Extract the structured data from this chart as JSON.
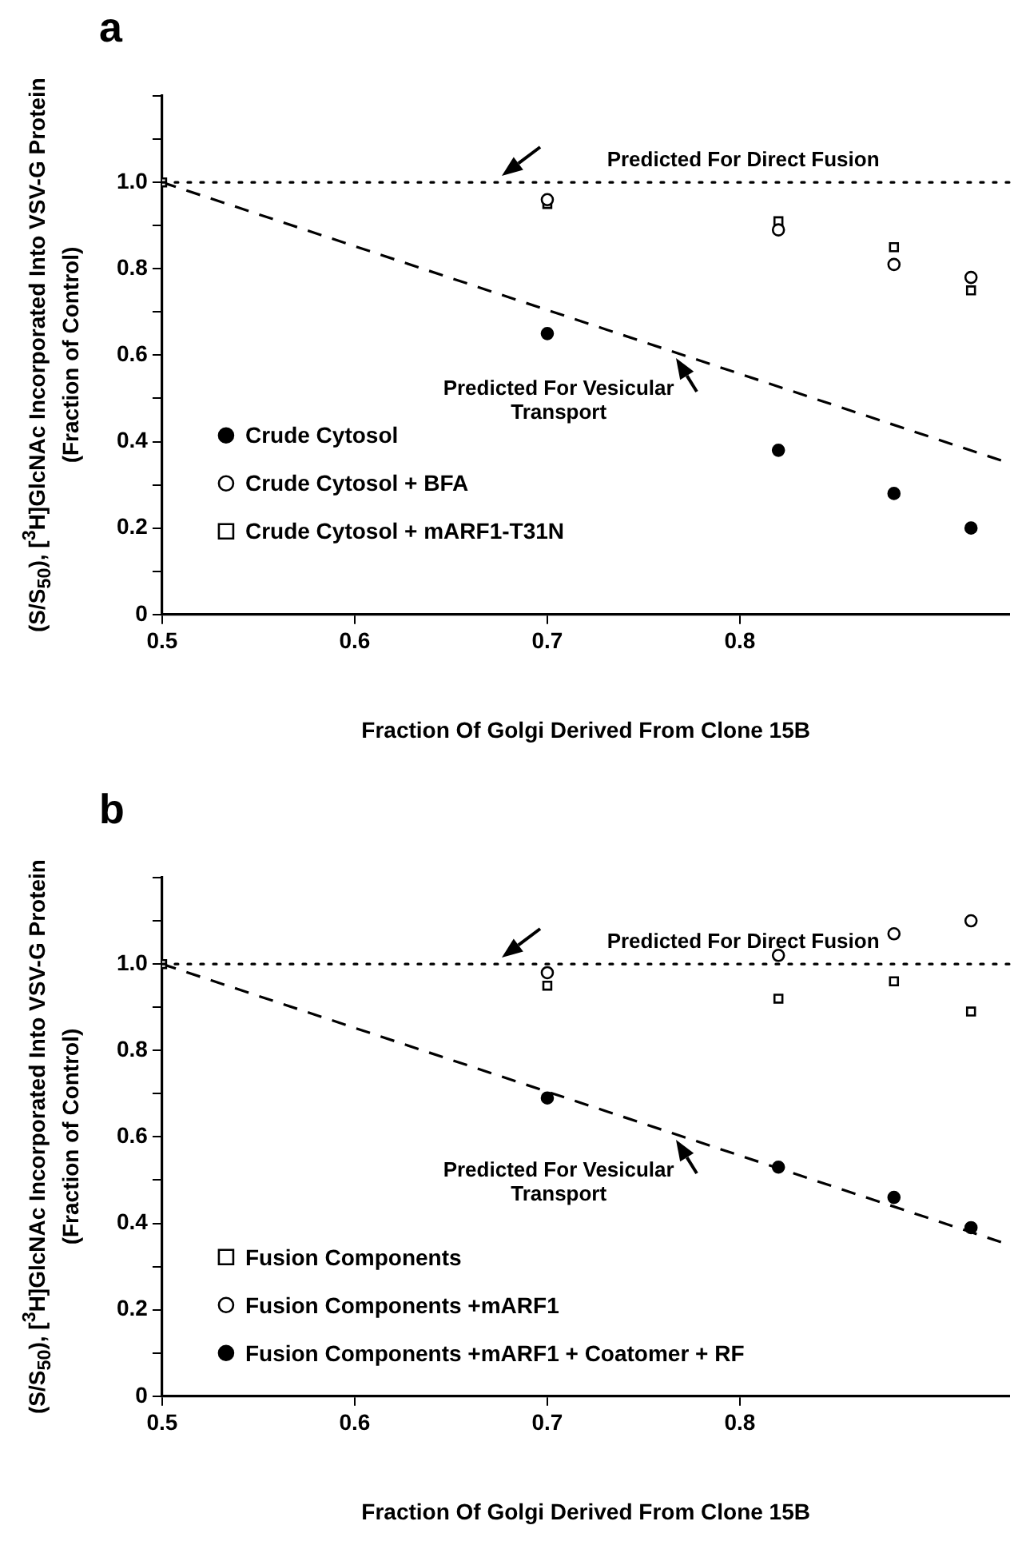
{
  "chart_data": [
    {
      "type": "scatter",
      "title": "a",
      "xlabel": "Fraction Of Golgi Derived From Clone 15B",
      "ylabel": "(S/S$_{50}$), [$^{3}$H]GlcNAc Incorporated Into VSV-G Protein (Fraction of Control)",
      "xlim": [
        0.5,
        0.94
      ],
      "xticks": [
        0.5,
        0.6,
        0.7,
        0.8
      ],
      "ylim": [
        0,
        1.2
      ],
      "yticks": [
        0,
        {
          "value": 0.1,
          "label": null
        },
        0.2,
        {
          "value": 0.3,
          "label": null
        },
        0.4,
        {
          "value": 0.5,
          "label": null
        },
        0.6,
        {
          "value": 0.7,
          "label": null
        },
        0.8,
        {
          "value": 0.9,
          "label": null
        },
        {
          "value": 1,
          "label": "1.0"
        },
        {
          "value": 1.1,
          "label": null
        },
        {
          "value": 1.2,
          "label": null
        }
      ],
      "grid": false,
      "legend": "left",
      "ref_lines": [
        {
          "axis": "y",
          "value": 1,
          "label": "Predicted For Direct Fusion",
          "line_style": "dotted",
          "color": "#000000"
        }
      ],
      "series": [
        {
          "name": "Crude Cytosol",
          "type": "scatter",
          "marker": "circle",
          "color": "#000000",
          "x": [
            0.7,
            0.82,
            0.88,
            0.92
          ],
          "values": [
            0.65,
            0.38,
            0.28,
            0.2
          ]
        },
        {
          "name": "Crude Cytosol + BFA",
          "type": "scatter",
          "marker": "circle",
          "color": "#ffffff",
          "x": [
            0.7,
            0.82,
            0.88,
            0.92
          ],
          "values": [
            0.96,
            0.89,
            0.81,
            0.78
          ]
        },
        {
          "name": "Crude Cytosol + mARF1-T31N",
          "type": "scatter",
          "marker": "square",
          "color": "#ffffff",
          "x": [
            0.5,
            0.7,
            0.82,
            0.88,
            0.92
          ],
          "values": [
            1,
            0.95,
            0.91,
            0.85,
            0.75
          ]
        },
        {
          "name": "Predicted For Vesicular Transport",
          "type": "line",
          "marker": "none",
          "line_style": "dashed",
          "color": "#000000",
          "x": [
            0.5,
            0.94
          ],
          "values": [
            1,
            0.35
          ]
        }
      ]
    },
    {
      "type": "scatter",
      "title": "b",
      "xlabel": "Fraction Of Golgi Derived From Clone 15B",
      "ylabel": "(S/S$_{50}$), [$^{3}$H]GlcNAc Incorporated Into VSV-G Protein (Fraction of Control)",
      "xlim": [
        0.5,
        0.94
      ],
      "xticks": [
        0.5,
        0.6,
        0.7,
        0.8
      ],
      "ylim": [
        0,
        1.2
      ],
      "yticks": [
        0,
        {
          "value": 0.1,
          "label": null
        },
        0.2,
        {
          "value": 0.3,
          "label": null
        },
        0.4,
        {
          "value": 0.5,
          "label": null
        },
        0.6,
        {
          "value": 0.7,
          "label": null
        },
        0.8,
        {
          "value": 0.9,
          "label": null
        },
        {
          "value": 1,
          "label": "1.0"
        },
        {
          "value": 1.1,
          "label": null
        },
        {
          "value": 1.2,
          "label": null
        }
      ],
      "grid": false,
      "legend": "bottom left",
      "ref_lines": [
        {
          "axis": "y",
          "value": 1,
          "label": "Predicted For Direct Fusion",
          "line_style": "dotted",
          "color": "#000000"
        }
      ],
      "series": [
        {
          "name": "Fusion Components",
          "type": "scatter",
          "marker": "square",
          "color": "#ffffff",
          "x": [
            0.5,
            0.7,
            0.82,
            0.88,
            0.92
          ],
          "values": [
            1,
            0.95,
            0.92,
            0.96,
            0.89
          ]
        },
        {
          "name": "Fusion Components +mARF1",
          "type": "scatter",
          "marker": "circle",
          "color": "#ffffff",
          "x": [
            0.7,
            0.82,
            0.88,
            0.92
          ],
          "values": [
            0.98,
            1.02,
            1.07,
            1.1
          ]
        },
        {
          "name": "Fusion Components +mARF1 + Coatomer + RF",
          "type": "scatter",
          "marker": "circle",
          "color": "#000000",
          "x": [
            0.7,
            0.82,
            0.88,
            0.92
          ],
          "values": [
            0.69,
            0.53,
            0.46,
            0.39
          ]
        },
        {
          "name": "Predicted For Vesicular Transport",
          "type": "line",
          "marker": "none",
          "line_style": "dashed",
          "color": "#000000",
          "x": [
            0.5,
            0.94
          ],
          "values": [
            1,
            0.35
          ]
        }
      ]
    }
  ]
}
